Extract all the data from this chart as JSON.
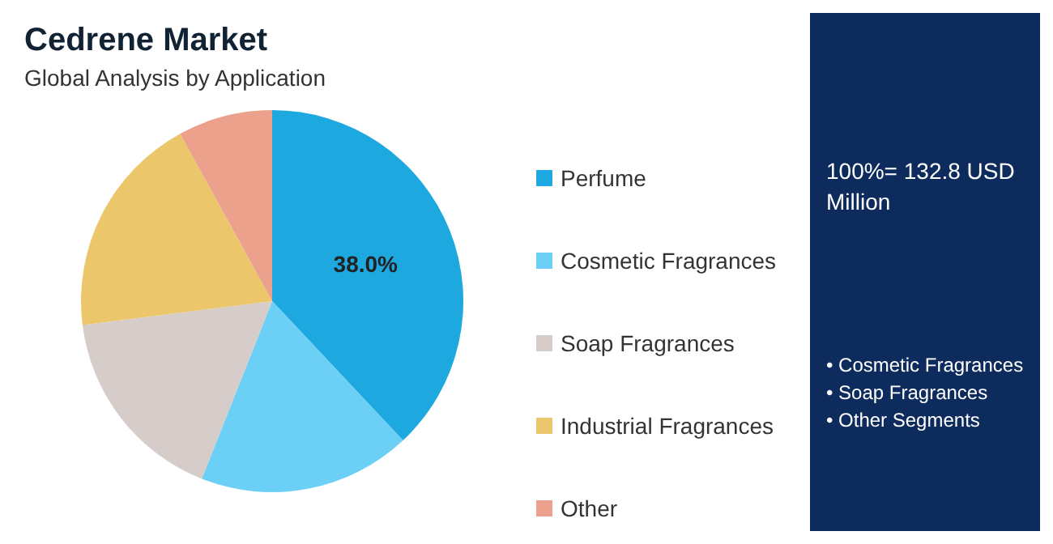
{
  "chart_data": {
    "type": "pie",
    "title": "Cedrene Market",
    "subtitle": "Global Analysis by Application",
    "categories": [
      "Perfume",
      "Cosmetic Fragrances",
      "Soap Fragrances",
      "Industrial Fragrances",
      "Other"
    ],
    "values": [
      38,
      18,
      17,
      19,
      8
    ],
    "value_labels": [
      "38.0%",
      null,
      null,
      null,
      null
    ],
    "colors": [
      "#1ea8e0",
      "#6ccff5",
      "#d6ccc9",
      "#ebc66b",
      "#eba18c"
    ],
    "legend": "right",
    "annotations": [
      "100%= 132.8 USD Million",
      "• Cosmetic Fragrances",
      "• Soap Fragrances",
      "• Other Segments"
    ]
  }
}
